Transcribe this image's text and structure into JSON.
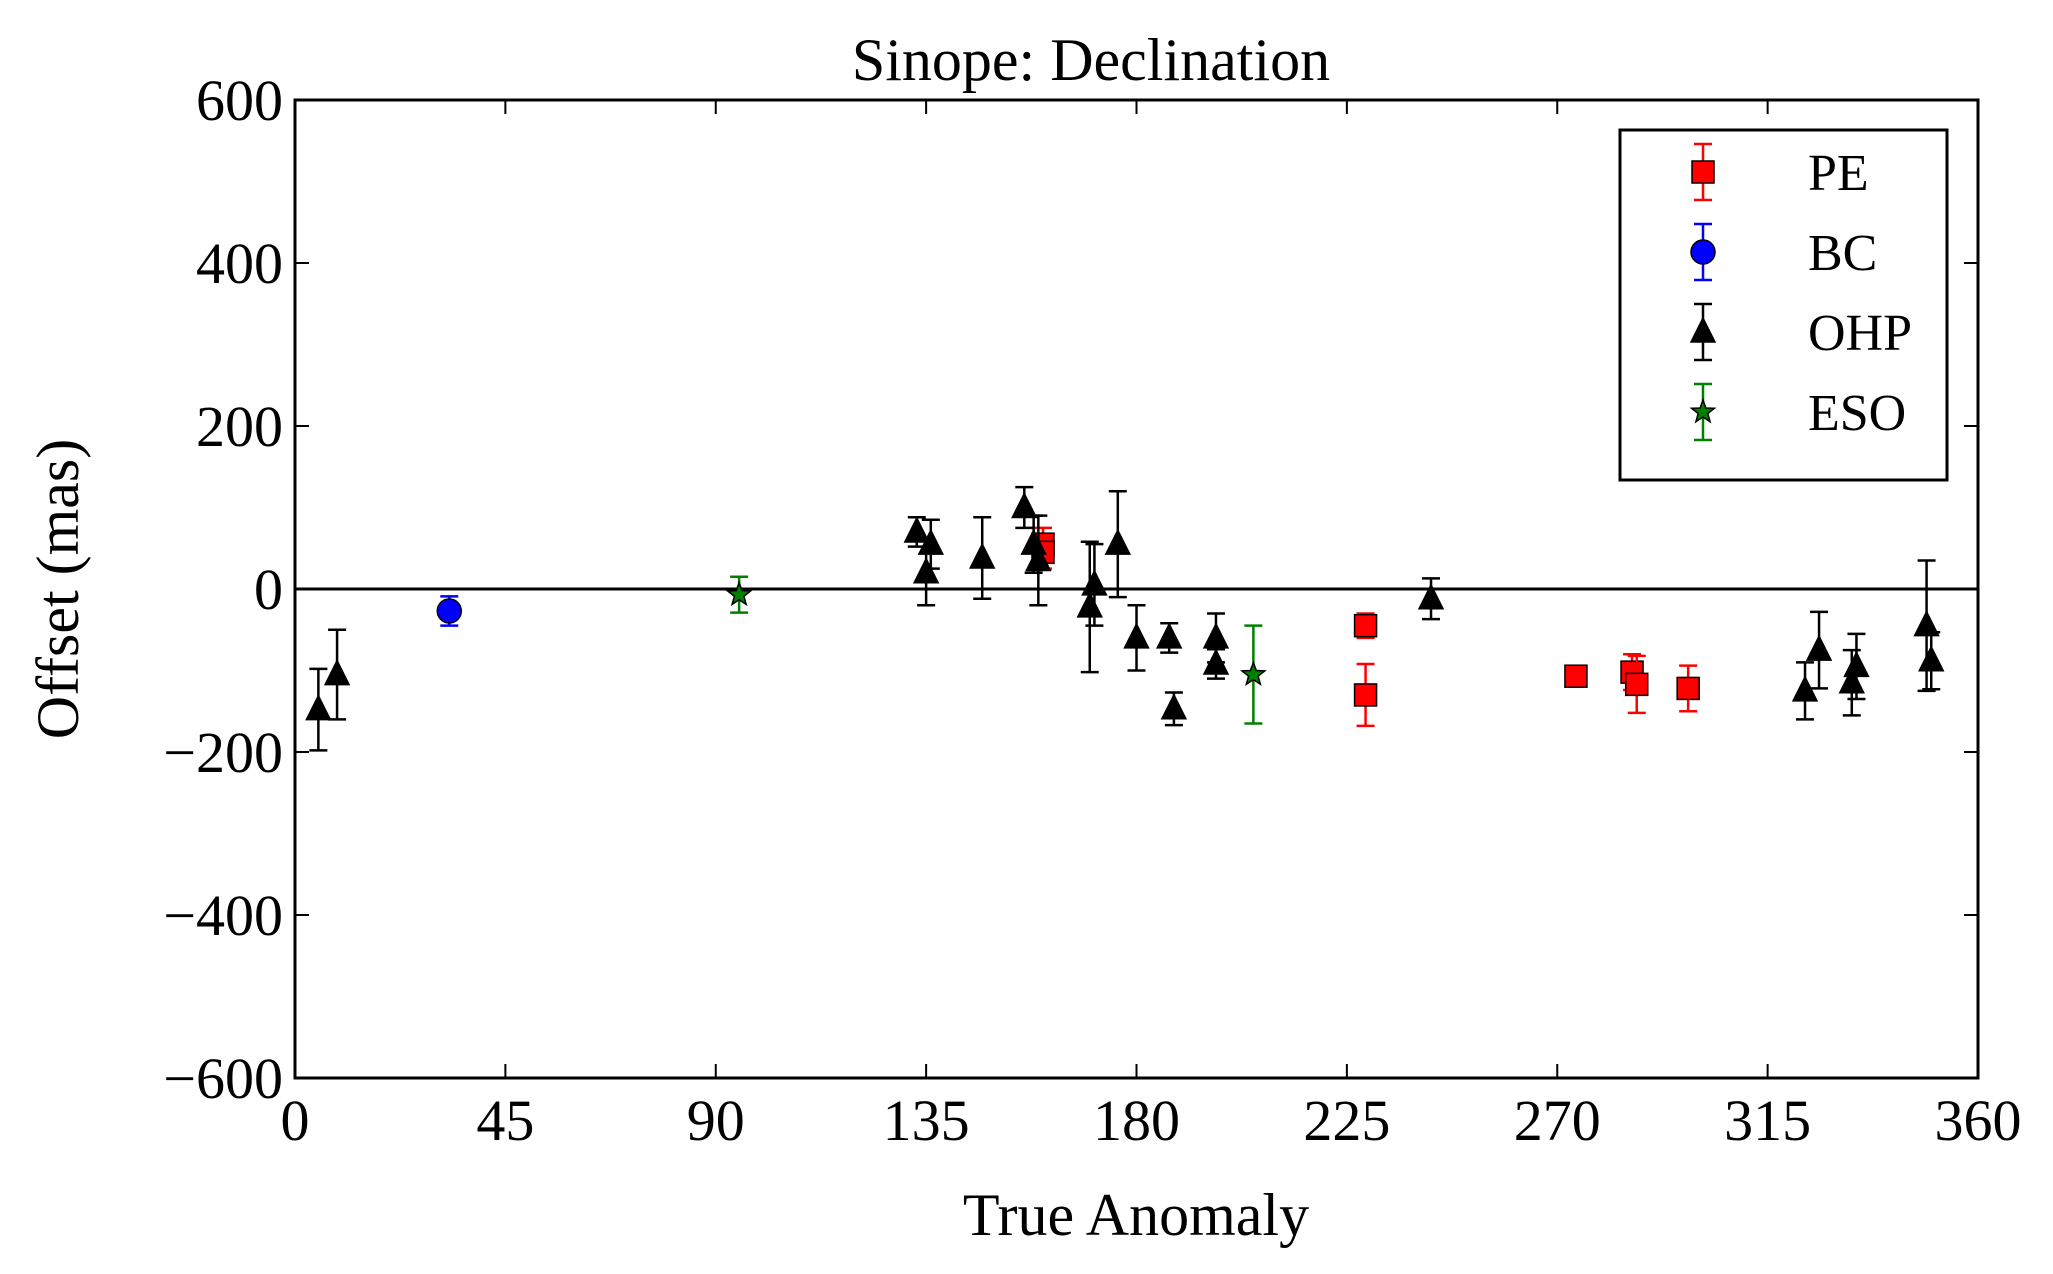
{
  "chart_data": {
    "type": "scatter",
    "title": "Sinope: Declination",
    "xlabel": "True Anomaly",
    "ylabel": "Offset (mas)",
    "xlim": [
      0,
      360
    ],
    "ylim": [
      -600,
      600
    ],
    "xticks": [
      0,
      45,
      90,
      135,
      180,
      225,
      270,
      315,
      360
    ],
    "yticks": [
      -600,
      -400,
      -200,
      0,
      200,
      400,
      600
    ],
    "ytick_labels": [
      "−600",
      "−400",
      "−200",
      "0",
      "200",
      "400",
      "600"
    ],
    "reference_line": 0,
    "grid": false,
    "legend_position": "top-right",
    "series": [
      {
        "name": "PE",
        "marker": "square",
        "color": "#ff0000",
        "points": [
          {
            "x": 160,
            "y": 55,
            "err": 20
          },
          {
            "x": 160,
            "y": 45,
            "err": 20
          },
          {
            "x": 229,
            "y": -45,
            "err": 15
          },
          {
            "x": 229,
            "y": -130,
            "err": 38
          },
          {
            "x": 274,
            "y": -107,
            "err": 12
          },
          {
            "x": 286,
            "y": -102,
            "err": 22
          },
          {
            "x": 287,
            "y": -117,
            "err": 35
          },
          {
            "x": 298,
            "y": -122,
            "err": 28
          }
        ]
      },
      {
        "name": "BC",
        "marker": "circle",
        "color": "#0000ff",
        "points": [
          {
            "x": 33,
            "y": -27,
            "err": 18
          }
        ]
      },
      {
        "name": "OHP",
        "marker": "triangle",
        "color": "#000000",
        "points": [
          {
            "x": 5,
            "y": -148,
            "err": 50
          },
          {
            "x": 9,
            "y": -105,
            "err": 55
          },
          {
            "x": 133,
            "y": 70,
            "err": 18
          },
          {
            "x": 135,
            "y": 20,
            "err": 40
          },
          {
            "x": 136,
            "y": 55,
            "err": 30
          },
          {
            "x": 147,
            "y": 38,
            "err": 50
          },
          {
            "x": 156,
            "y": 100,
            "err": 25
          },
          {
            "x": 158,
            "y": 55,
            "err": 35
          },
          {
            "x": 159,
            "y": 35,
            "err": 55
          },
          {
            "x": 170,
            "y": -22,
            "err": 80
          },
          {
            "x": 171,
            "y": 5,
            "err": 50
          },
          {
            "x": 176,
            "y": 55,
            "err": 65
          },
          {
            "x": 180,
            "y": -60,
            "err": 40
          },
          {
            "x": 187,
            "y": -60,
            "err": 18
          },
          {
            "x": 188,
            "y": -147,
            "err": 20
          },
          {
            "x": 197,
            "y": -60,
            "err": 30
          },
          {
            "x": 197,
            "y": -92,
            "err": 18
          },
          {
            "x": 243,
            "y": -12,
            "err": 25
          },
          {
            "x": 323,
            "y": -125,
            "err": 35
          },
          {
            "x": 326,
            "y": -75,
            "err": 47
          },
          {
            "x": 333,
            "y": -115,
            "err": 40
          },
          {
            "x": 334,
            "y": -95,
            "err": 40
          },
          {
            "x": 349,
            "y": -45,
            "err": 80
          },
          {
            "x": 350,
            "y": -88,
            "err": 35
          }
        ]
      },
      {
        "name": "ESO",
        "marker": "star",
        "color": "#008000",
        "points": [
          {
            "x": 95,
            "y": -7,
            "err": 22
          },
          {
            "x": 205,
            "y": -105,
            "err": 60
          }
        ]
      }
    ]
  }
}
